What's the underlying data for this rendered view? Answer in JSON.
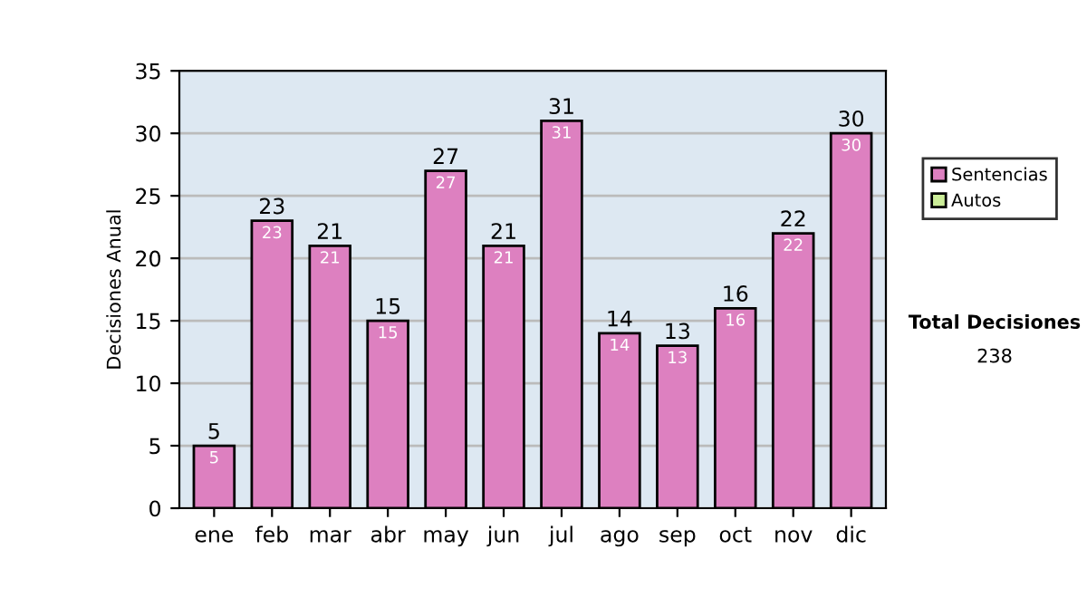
{
  "chart_data": {
    "type": "bar",
    "stacked": true,
    "ylabel": "Decisiones Anual",
    "categories": [
      "ene",
      "feb",
      "mar",
      "abr",
      "may",
      "jun",
      "jul",
      "ago",
      "sep",
      "oct",
      "nov",
      "dic"
    ],
    "series": [
      {
        "name": "Sentencias",
        "color": "#dd80c0",
        "values": [
          5,
          23,
          21,
          15,
          27,
          21,
          31,
          14,
          13,
          16,
          22,
          30
        ],
        "value_labels": [
          "5",
          "23",
          "21",
          "15",
          "27",
          "21",
          "31",
          "14",
          "13",
          "16",
          "22",
          "30"
        ]
      },
      {
        "name": "Autos",
        "color": "#ccee99",
        "values": [
          null,
          null,
          null,
          null,
          null,
          null,
          null,
          null,
          null,
          null,
          null,
          null
        ]
      }
    ],
    "totals": [
      "5",
      "23",
      "21",
      "15",
      "27",
      "21",
      "31",
      "14",
      "13",
      "16",
      "22",
      "30"
    ],
    "ylim": [
      0,
      35
    ],
    "yticks": [
      0,
      5,
      10,
      15,
      20,
      25,
      30,
      35
    ],
    "grid": "y",
    "legend": "right",
    "annotations": [
      "Total Decisiones",
      "238"
    ]
  }
}
